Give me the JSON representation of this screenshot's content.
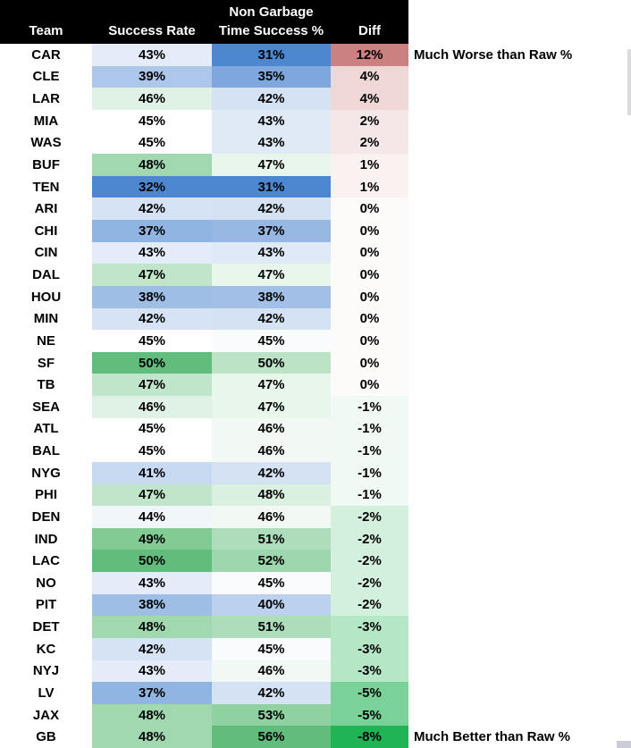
{
  "style": {
    "header_bg": "#000000",
    "header_text": "#FFFFFF",
    "cell_text": "#000000",
    "scale_low_blue": "#4C87D0",
    "scale_mid_white": "#FFFFFF",
    "scale_high_green": "#62BD7C",
    "diff_scale_high_red": "#CA817F",
    "diff_scale_low_green": "#21B455"
  },
  "header": {
    "team": "Team",
    "success_rate": "Success Rate",
    "ngt_line1": "Non Garbage",
    "ngt_line2": "Time Success %",
    "diff": "Diff"
  },
  "annotations": {
    "top": "Much Worse than Raw %",
    "bottom": "Much Better than Raw %"
  },
  "chart_data": {
    "type": "heatmap",
    "title": "",
    "columns": [
      "Team",
      "Success Rate",
      "Non Garbage Time Success %",
      "Diff"
    ],
    "value_suffix": "%",
    "legend": "color scale: blue = low success, white = mid, green = high; Diff column: red = much worse than raw %, green = much better than raw %",
    "rows": [
      {
        "team": "CAR",
        "values": [
          43,
          31,
          12
        ],
        "colors": [
          "#E3ECF8",
          "#4C87D0",
          "#CA817F"
        ]
      },
      {
        "team": "CLE",
        "values": [
          39,
          35,
          4
        ],
        "colors": [
          "#ACC7E9",
          "#7DA7DD",
          "#EFD7D6"
        ]
      },
      {
        "team": "LAR",
        "values": [
          46,
          42,
          4
        ],
        "colors": [
          "#E0F2E5",
          "#D4E2F4",
          "#EFD7D6"
        ]
      },
      {
        "team": "MIA",
        "values": [
          45,
          43,
          2
        ],
        "colors": [
          "#FFFFFF",
          "#E0EAF7",
          "#F5E7E7"
        ]
      },
      {
        "team": "WAS",
        "values": [
          45,
          43,
          2
        ],
        "colors": [
          "#FFFFFF",
          "#E0EAF7",
          "#F5E7E7"
        ]
      },
      {
        "team": "BUF",
        "values": [
          48,
          47,
          1
        ],
        "colors": [
          "#A1D8B0",
          "#E9F6EC",
          "#FAF1F1"
        ]
      },
      {
        "team": "TEN",
        "values": [
          32,
          31,
          1
        ],
        "colors": [
          "#4C87D0",
          "#4C87D0",
          "#FAF1F1"
        ]
      },
      {
        "team": "ARI",
        "values": [
          42,
          42,
          0
        ],
        "colors": [
          "#D5E3F4",
          "#D4E2F4",
          "#FDFAFA"
        ]
      },
      {
        "team": "CHI",
        "values": [
          37,
          37,
          0
        ],
        "colors": [
          "#90B5E2",
          "#96B8E3",
          "#FDFAFA"
        ]
      },
      {
        "team": "CIN",
        "values": [
          43,
          43,
          0
        ],
        "colors": [
          "#E3ECF8",
          "#E0EAF7",
          "#FDFAFA"
        ]
      },
      {
        "team": "DAL",
        "values": [
          47,
          47,
          0
        ],
        "colors": [
          "#C1E5CA",
          "#E9F6EC",
          "#FDFAFA"
        ]
      },
      {
        "team": "HOU",
        "values": [
          38,
          38,
          0
        ],
        "colors": [
          "#9EBEE6",
          "#A2C0E7",
          "#FDFAFA"
        ]
      },
      {
        "team": "MIN",
        "values": [
          42,
          42,
          0
        ],
        "colors": [
          "#D5E3F4",
          "#D4E2F4",
          "#FDFAFA"
        ]
      },
      {
        "team": "NE",
        "values": [
          45,
          45,
          0
        ],
        "colors": [
          "#FFFFFF",
          "#F9FBFD",
          "#FDFAFA"
        ]
      },
      {
        "team": "SF",
        "values": [
          50,
          50,
          0
        ],
        "colors": [
          "#62BD7C",
          "#BCE3C6",
          "#FDFAFA"
        ]
      },
      {
        "team": "TB",
        "values": [
          47,
          47,
          0
        ],
        "colors": [
          "#C1E5CA",
          "#E9F6EC",
          "#FDFAFA"
        ]
      },
      {
        "team": "SEA",
        "values": [
          46,
          47,
          -1
        ],
        "colors": [
          "#E0F2E5",
          "#E9F6EC",
          "#F0F9F3"
        ]
      },
      {
        "team": "ATL",
        "values": [
          45,
          46,
          -1
        ],
        "colors": [
          "#FFFFFF",
          "#F2F9F4",
          "#F0F9F3"
        ]
      },
      {
        "team": "BAL",
        "values": [
          45,
          46,
          -1
        ],
        "colors": [
          "#FFFFFF",
          "#F2F9F4",
          "#F0F9F3"
        ]
      },
      {
        "team": "NYG",
        "values": [
          41,
          42,
          -1
        ],
        "colors": [
          "#C8DAF1",
          "#D4E2F4",
          "#F0F9F3"
        ]
      },
      {
        "team": "PHI",
        "values": [
          47,
          48,
          -1
        ],
        "colors": [
          "#C1E5CA",
          "#DAF0E0",
          "#F0F9F3"
        ]
      },
      {
        "team": "DEN",
        "values": [
          44,
          46,
          -2
        ],
        "colors": [
          "#F1F6FB",
          "#F2F9F4",
          "#D3F0DD"
        ]
      },
      {
        "team": "IND",
        "values": [
          49,
          51,
          -2
        ],
        "colors": [
          "#82CB95",
          "#ADDDBA",
          "#D3F0DD"
        ]
      },
      {
        "team": "LAC",
        "values": [
          50,
          52,
          -2
        ],
        "colors": [
          "#62BD7C",
          "#9ED7AD",
          "#D3F0DD"
        ]
      },
      {
        "team": "NO",
        "values": [
          43,
          45,
          -2
        ],
        "colors": [
          "#E3ECF8",
          "#F9FBFD",
          "#D3F0DD"
        ]
      },
      {
        "team": "PIT",
        "values": [
          38,
          40,
          -2
        ],
        "colors": [
          "#9EBEE6",
          "#BBD1ED",
          "#D3F0DD"
        ]
      },
      {
        "team": "DET",
        "values": [
          48,
          51,
          -3
        ],
        "colors": [
          "#A1D8B0",
          "#ADDDBA",
          "#B5E6C6"
        ]
      },
      {
        "team": "KC",
        "values": [
          42,
          45,
          -3
        ],
        "colors": [
          "#D5E3F4",
          "#F9FBFD",
          "#B5E6C6"
        ]
      },
      {
        "team": "NYJ",
        "values": [
          43,
          46,
          -3
        ],
        "colors": [
          "#E3ECF8",
          "#F2F9F4",
          "#B5E6C6"
        ]
      },
      {
        "team": "LV",
        "values": [
          37,
          42,
          -5
        ],
        "colors": [
          "#90B5E2",
          "#D4E2F4",
          "#7AD299"
        ]
      },
      {
        "team": "JAX",
        "values": [
          48,
          53,
          -5
        ],
        "colors": [
          "#A1D8B0",
          "#90D1A1",
          "#7AD299"
        ]
      },
      {
        "team": "GB",
        "values": [
          48,
          56,
          -8
        ],
        "colors": [
          "#A1D8B0",
          "#62BD7C",
          "#21B455"
        ]
      }
    ]
  }
}
